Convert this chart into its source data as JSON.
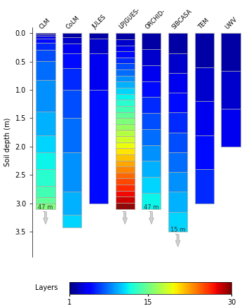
{
  "ylabel": "Soil depth (m)",
  "depth_axis_max": 3.5,
  "colormap": "jet",
  "n_layers_max": 30,
  "colorbar_label": "Layers",
  "colorbar_ticks": [
    1,
    15,
    30
  ],
  "models": [
    {
      "name": "CLM",
      "n_layers": 15,
      "depth_shown": 3.1,
      "arrow": true,
      "arrow_label": "47 m",
      "layer_boundaries": [
        0.0,
        0.018,
        0.045,
        0.091,
        0.166,
        0.289,
        0.493,
        0.829,
        1.383,
        1.8,
        2.1,
        2.4,
        2.7,
        2.9,
        3.0,
        3.1
      ]
    },
    {
      "name": "CoLM",
      "n_layers": 10,
      "depth_shown": 3.43,
      "arrow": false,
      "arrow_label": "",
      "layer_boundaries": [
        0.0,
        0.07,
        0.18,
        0.36,
        0.62,
        1.0,
        1.5,
        2.1,
        2.8,
        3.2,
        3.43
      ]
    },
    {
      "name": "JULES",
      "n_layers": 4,
      "depth_shown": 3.0,
      "arrow": false,
      "arrow_label": "",
      "layer_boundaries": [
        0.0,
        0.1,
        0.35,
        1.0,
        3.0
      ]
    },
    {
      "name": "LPJGUES-",
      "n_layers": 29,
      "depth_shown": 3.1,
      "arrow": true,
      "arrow_label": "47 m",
      "layer_boundaries": null
    },
    {
      "name": "ORCHID-",
      "n_layers": 11,
      "depth_shown": 3.1,
      "arrow": true,
      "arrow_label": "47 m",
      "layer_boundaries": null
    },
    {
      "name": "SIBCASA",
      "n_layers": 10,
      "depth_shown": 3.5,
      "arrow": true,
      "arrow_label": "15 m",
      "layer_boundaries": null
    },
    {
      "name": "TEM",
      "n_layers": 5,
      "depth_shown": 3.0,
      "arrow": false,
      "arrow_label": "",
      "layer_boundaries": null
    },
    {
      "name": "UWV",
      "n_layers": 3,
      "depth_shown": 2.0,
      "arrow": false,
      "arrow_label": "",
      "layer_boundaries": null
    }
  ]
}
